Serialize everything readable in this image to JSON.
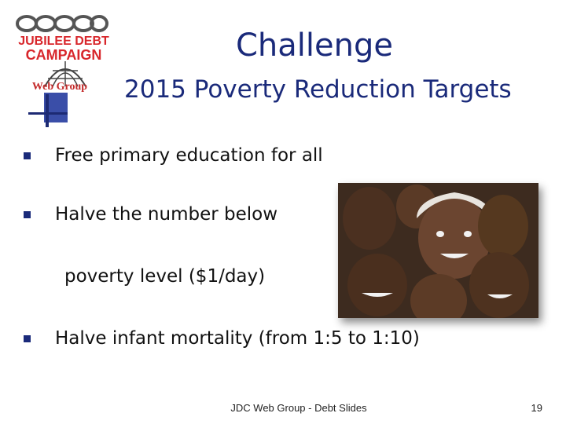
{
  "logo": {
    "line1": "JUBILEE DEBT",
    "line2": "CAMPAIGN",
    "line3": "Web Group",
    "icon": "chain-and-globe-logo"
  },
  "title": "Challenge",
  "subtitle": "2015 Poverty Reduction Targets",
  "bullets": [
    {
      "text": "Free primary education for all"
    },
    {
      "text": "Halve the number below",
      "continuation": "poverty level ($1/day)"
    },
    {
      "text": "Halve infant mortality (from 1:5 to 1:10)"
    }
  ],
  "photo": {
    "subject": "group of smiling children"
  },
  "footer": {
    "text": "JDC Web Group - Debt Slides",
    "page": "19"
  },
  "colors": {
    "title": "#1a2a7a",
    "logo_red": "#d8262b",
    "bullet": "#1a2a7a"
  }
}
